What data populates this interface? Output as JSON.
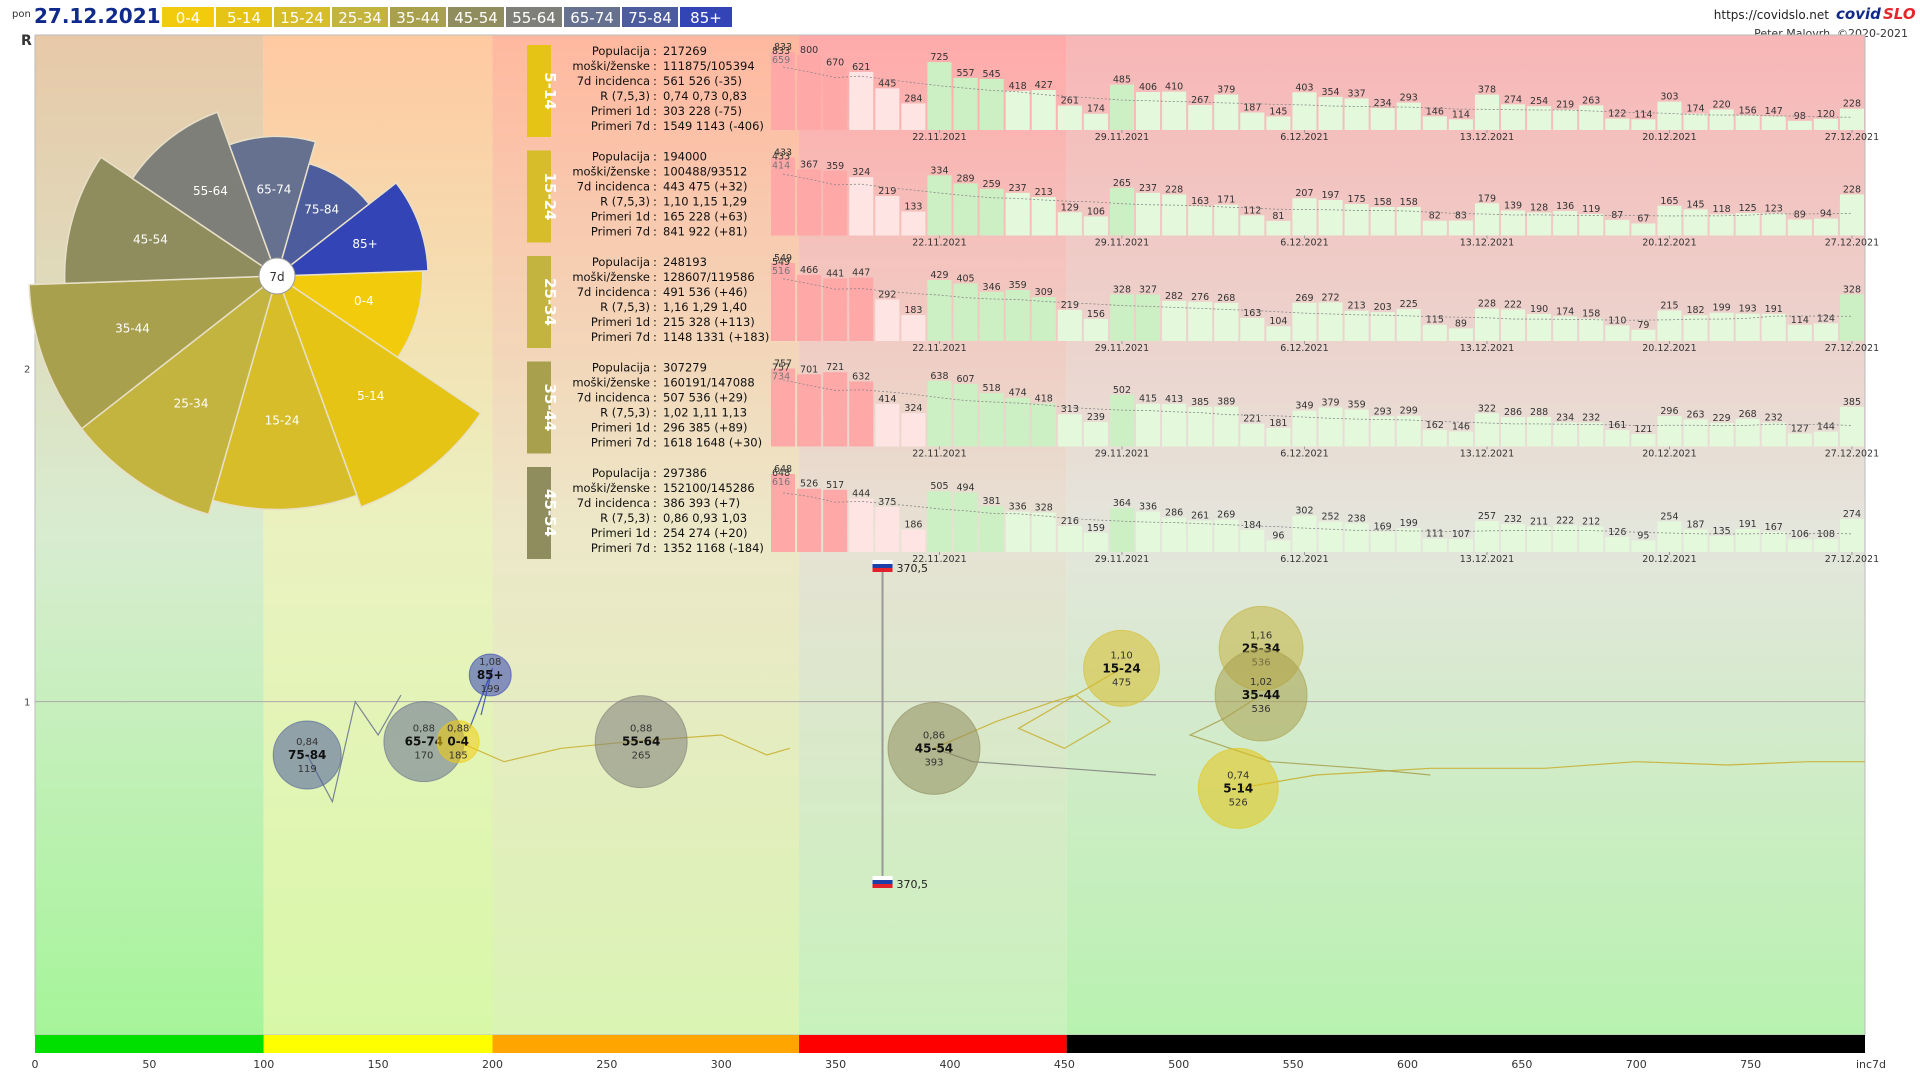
{
  "header": {
    "day": "pon",
    "date": "27.12.2021",
    "age_groups": [
      {
        "label": "0-4",
        "bg": "#f2cc0c",
        "fg": "#ffffff"
      },
      {
        "label": "5-14",
        "bg": "#e6c416",
        "fg": "#ffffff"
      },
      {
        "label": "15-24",
        "bg": "#d7bd2a",
        "fg": "#ffffff"
      },
      {
        "label": "25-34",
        "bg": "#c3b33f",
        "fg": "#ffffff"
      },
      {
        "label": "35-44",
        "bg": "#a8a04d",
        "fg": "#ffffff"
      },
      {
        "label": "45-54",
        "bg": "#8f8c5d",
        "fg": "#ffffff"
      },
      {
        "label": "55-64",
        "bg": "#7f7f7a",
        "fg": "#ffffff"
      },
      {
        "label": "65-74",
        "bg": "#66708f",
        "fg": "#ffffff"
      },
      {
        "label": "75-84",
        "bg": "#4d5c9d",
        "fg": "#ffffff"
      },
      {
        "label": "85+",
        "bg": "#3344b6",
        "fg": "#ffffff"
      }
    ],
    "url": "https://covidslo.net",
    "brand_a": "covid",
    "brand_b": "SLO",
    "credit": "Peter Malovrh, ©2020-2021"
  },
  "colors": {
    "date": "#102a8c",
    "brand_a": "#102a8c",
    "brand_b": "#e4262b",
    "zone_green": "#00e000",
    "zone_yellow": "#ffff00",
    "zone_orange": "#ffa500",
    "zone_red": "#ff0000",
    "zone_black": "#000000"
  },
  "chart_data": [
    {
      "type": "rose",
      "center_label": "7d",
      "slices": [
        {
          "label": "0-4",
          "value": 185,
          "color": "#f2cc0c"
        },
        {
          "label": "5-14",
          "value": 526,
          "color": "#e6c416"
        },
        {
          "label": "15-24",
          "value": 475,
          "color": "#d7bd2a"
        },
        {
          "label": "25-34",
          "value": 536,
          "color": "#c3b33f"
        },
        {
          "label": "35-44",
          "value": 536,
          "color": "#a8a04d"
        },
        {
          "label": "45-54",
          "value": 393,
          "color": "#8f8c5d"
        },
        {
          "label": "55-64",
          "value": 265,
          "color": "#7f7f7a"
        },
        {
          "label": "65-74",
          "value": 170,
          "color": "#66708f"
        },
        {
          "label": "75-84",
          "value": 119,
          "color": "#4d5c9d"
        },
        {
          "label": "85+",
          "value": 199,
          "color": "#3344b6"
        }
      ]
    },
    {
      "type": "bar",
      "dates": [
        "22.11.2021",
        "29.11.2021",
        "6.12.2021",
        "13.12.2021",
        "20.12.2021",
        "27.12.2021"
      ],
      "panels": [
        {
          "group": "5-14",
          "color": "#e6c416",
          "stats": [
            {
              "label": "Populacija",
              "value": "217269"
            },
            {
              "label": "moški/ženske",
              "value": "111875/105394"
            },
            {
              "label": "7d incidenca",
              "value": "561 526 (-35)"
            },
            {
              "label": "R (7,5,3)",
              "value": "0,74 0,73 0,83"
            },
            {
              "label": "Primeri 1d",
              "value": "303 228 (-75)"
            },
            {
              "label": "Primeri 7d",
              "value": "1549 1143 (-406)"
            }
          ],
          "top_labels": [
            "833",
            "659"
          ],
          "values": [
            833,
            800,
            670,
            621,
            445,
            284,
            725,
            557,
            545,
            418,
            427,
            261,
            174,
            485,
            406,
            410,
            267,
            379,
            187,
            145,
            403,
            354,
            337,
            234,
            293,
            146,
            114,
            378,
            274,
            254,
            219,
            263,
            122,
            114,
            303,
            174,
            220,
            156,
            147,
            98,
            120,
            228
          ]
        },
        {
          "group": "15-24",
          "color": "#d7bd2a",
          "stats": [
            {
              "label": "Populacija",
              "value": "194000"
            },
            {
              "label": "moški/ženske",
              "value": "100488/93512"
            },
            {
              "label": "7d incidenca",
              "value": "443 475 (+32)"
            },
            {
              "label": "R (7,5,3)",
              "value": "1,10 1,15 1,29"
            },
            {
              "label": "Primeri 1d",
              "value": "165 228 (+63)"
            },
            {
              "label": "Primeri 7d",
              "value": "841 922 (+81)"
            }
          ],
          "top_labels": [
            "433",
            "414"
          ],
          "values": [
            433,
            367,
            359,
            324,
            219,
            133,
            334,
            289,
            259,
            237,
            213,
            129,
            106,
            265,
            237,
            228,
            163,
            171,
            112,
            81,
            207,
            197,
            175,
            158,
            158,
            82,
            83,
            179,
            139,
            128,
            136,
            119,
            87,
            67,
            165,
            145,
            118,
            125,
            123,
            89,
            94,
            228
          ]
        },
        {
          "group": "25-34",
          "color": "#c3b33f",
          "stats": [
            {
              "label": "Populacija",
              "value": "248193"
            },
            {
              "label": "moški/ženske",
              "value": "128607/119586"
            },
            {
              "label": "7d incidenca",
              "value": "491 536 (+46)"
            },
            {
              "label": "R (7,5,3)",
              "value": "1,16 1,29 1,40"
            },
            {
              "label": "Primeri 1d",
              "value": "215 328 (+113)"
            },
            {
              "label": "Primeri 7d",
              "value": "1148 1331 (+183)"
            }
          ],
          "top_labels": [
            "549",
            "516"
          ],
          "values": [
            549,
            466,
            441,
            447,
            292,
            183,
            429,
            405,
            346,
            359,
            309,
            219,
            156,
            328,
            327,
            282,
            276,
            268,
            163,
            104,
            269,
            272,
            213,
            203,
            225,
            115,
            89,
            228,
            222,
            190,
            174,
            158,
            110,
            79,
            215,
            182,
            199,
            193,
            191,
            114,
            124,
            328
          ]
        },
        {
          "group": "35-44",
          "color": "#a8a04d",
          "stats": [
            {
              "label": "Populacija",
              "value": "307279"
            },
            {
              "label": "moški/ženske",
              "value": "160191/147088"
            },
            {
              "label": "7d incidenca",
              "value": "507 536 (+29)"
            },
            {
              "label": "R (7,5,3)",
              "value": "1,02 1,11 1,13"
            },
            {
              "label": "Primeri 1d",
              "value": "296 385 (+89)"
            },
            {
              "label": "Primeri 7d",
              "value": "1618 1648 (+30)"
            }
          ],
          "top_labels": [
            "757",
            "734"
          ],
          "values": [
            757,
            701,
            721,
            632,
            414,
            324,
            638,
            607,
            518,
            474,
            418,
            313,
            239,
            502,
            415,
            413,
            385,
            389,
            221,
            181,
            349,
            379,
            359,
            293,
            299,
            162,
            146,
            322,
            286,
            288,
            234,
            232,
            161,
            121,
            296,
            263,
            229,
            268,
            232,
            127,
            144,
            385
          ]
        },
        {
          "group": "45-54",
          "color": "#8f8c5d",
          "stats": [
            {
              "label": "Populacija",
              "value": "297386"
            },
            {
              "label": "moški/ženske",
              "value": "152100/145286"
            },
            {
              "label": "7d incidenca",
              "value": "386 393 (+7)"
            },
            {
              "label": "R (7,5,3)",
              "value": "0,86 0,93 1,03"
            },
            {
              "label": "Primeri 1d",
              "value": "254 274 (+20)"
            },
            {
              "label": "Primeri 7d",
              "value": "1352 1168 (-184)"
            }
          ],
          "top_labels": [
            "648",
            "616"
          ],
          "values": [
            648,
            526,
            517,
            444,
            375,
            186,
            505,
            494,
            381,
            336,
            328,
            216,
            159,
            364,
            336,
            286,
            261,
            269,
            184,
            96,
            302,
            252,
            238,
            169,
            199,
            111,
            107,
            257,
            232,
            211,
            222,
            212,
            126,
            95,
            254,
            187,
            135,
            191,
            167,
            106,
            108,
            274
          ]
        }
      ]
    },
    {
      "type": "scatter",
      "xlabel": "inc7d",
      "ylabel": "R",
      "xlim": [
        0,
        800
      ],
      "ylim": [
        0,
        3
      ],
      "y_ticks": [
        "1",
        "2"
      ],
      "x_ticks": [
        "0",
        "50",
        "100",
        "150",
        "200",
        "250",
        "300",
        "350",
        "400",
        "450",
        "500",
        "550",
        "600",
        "650",
        "700",
        "750",
        "inc7d"
      ],
      "zones": [
        {
          "from": 0,
          "to": 100,
          "bar": "#00e000"
        },
        {
          "from": 100,
          "to": 200,
          "bar": "#ffff00"
        },
        {
          "from": 200,
          "to": 334,
          "bar": "#ffa500"
        },
        {
          "from": 334,
          "to": 451,
          "bar": "#ff0000"
        },
        {
          "from": 451,
          "to": 800,
          "bar": "#000000"
        }
      ],
      "flag_x": 370.5,
      "flag_labels": [
        "370,5",
        "370,5"
      ],
      "bubbles": [
        {
          "label": "75-84",
          "r": "0,84",
          "inc": "119",
          "x": 119,
          "y": 0.84,
          "color": "#4d5c9d",
          "size": 34
        },
        {
          "label": "65-74",
          "r": "0,88",
          "inc": "170",
          "x": 170,
          "y": 0.88,
          "color": "#66708f",
          "size": 40
        },
        {
          "label": "0-4",
          "r": "0,88",
          "inc": "185",
          "x": 185,
          "y": 0.88,
          "color": "#f2cc0c",
          "size": 21
        },
        {
          "label": "85+",
          "r": "1,08",
          "inc": "199",
          "x": 199,
          "y": 1.08,
          "color": "#3344b6",
          "size": 21
        },
        {
          "label": "55-64",
          "r": "0,88",
          "inc": "265",
          "x": 265,
          "y": 0.88,
          "color": "#7f7f7a",
          "size": 46
        },
        {
          "label": "45-54",
          "r": "0,86",
          "inc": "393",
          "x": 393,
          "y": 0.86,
          "color": "#8f8c5d",
          "size": 46
        },
        {
          "label": "15-24",
          "r": "1,10",
          "inc": "475",
          "x": 475,
          "y": 1.1,
          "color": "#d7bd2a",
          "size": 38
        },
        {
          "label": "25-34",
          "r": "1,16",
          "inc": "536",
          "x": 536,
          "y": 1.16,
          "color": "#c3b33f",
          "size": 42
        },
        {
          "label": "35-44",
          "r": "1,02",
          "inc": "536",
          "x": 536,
          "y": 1.02,
          "color": "#a8a04d",
          "size": 46
        },
        {
          "label": "5-14",
          "r": "0,74",
          "inc": "526",
          "x": 526,
          "y": 0.74,
          "color": "#e6c416",
          "size": 40
        }
      ]
    }
  ]
}
